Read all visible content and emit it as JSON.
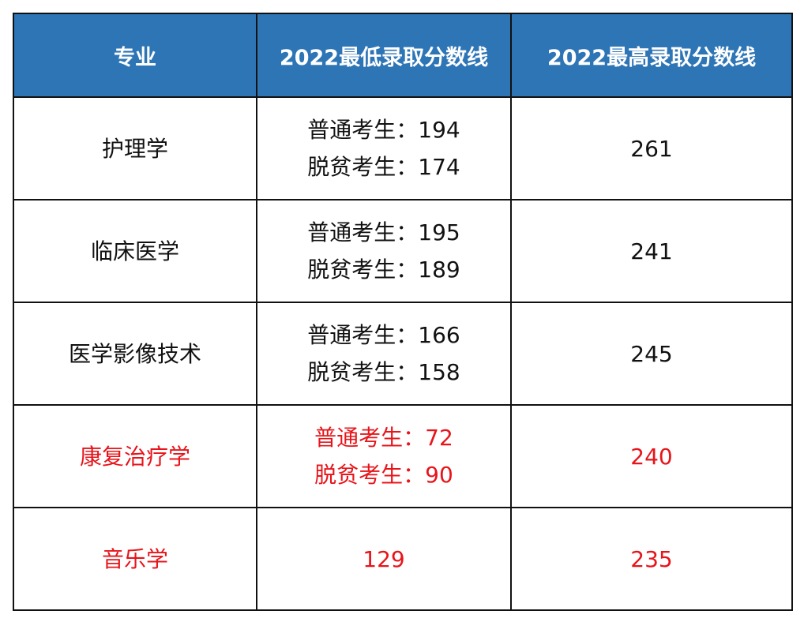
{
  "table": {
    "headers": [
      "专业",
      "2022最低录取分数线",
      "2022最高录取分数线"
    ],
    "rows": [
      {
        "major": "护理学",
        "min": [
          "普通考生：194",
          "脱贫考生：174"
        ],
        "max": "261",
        "highlight": false
      },
      {
        "major": "临床医学",
        "min": [
          "普通考生：195",
          "脱贫考生：189"
        ],
        "max": "241",
        "highlight": false
      },
      {
        "major": "医学影像技术",
        "min": [
          "普通考生：166",
          "脱贫考生：158"
        ],
        "max": "245",
        "highlight": false
      },
      {
        "major": "康复治疗学",
        "min": [
          "普通考生：72",
          "脱贫考生：90"
        ],
        "max": "240",
        "highlight": true
      },
      {
        "major": "音乐学",
        "min": [
          "129"
        ],
        "max": "235",
        "highlight": true
      }
    ]
  },
  "colors": {
    "header_bg": "#2e75b6",
    "header_text": "#ffffff",
    "highlight_text": "#e8141a",
    "text": "#111111"
  }
}
